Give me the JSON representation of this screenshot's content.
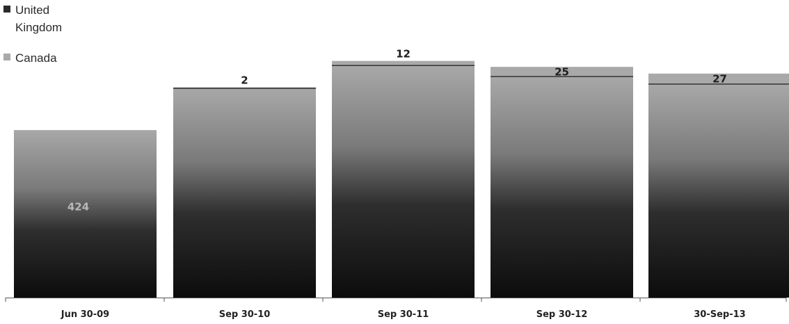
{
  "colors": {
    "canada": "#a9a9a9",
    "united_kingdom": "#2a2a2a",
    "base": "#1a1a1a",
    "axis": "#555555",
    "label_dark": "#1e1e1e",
    "label_light": "#b8b8b8"
  },
  "legend": [
    {
      "name": "United Kingdom",
      "lines": [
        "United",
        "Kingdom"
      ],
      "color_key": "united_kingdom"
    },
    {
      "name": "Canada",
      "lines": [
        "Canada"
      ],
      "color_key": "canada"
    }
  ],
  "chart_data": {
    "type": "bar",
    "stacked": true,
    "categories": [
      "Jun 30-09",
      "Sep 30-10",
      "Sep 30-11",
      "Sep 30-12",
      "30-Sep-13"
    ],
    "series": [
      {
        "name": "",
        "values": [
          424,
          529,
          587,
          559,
          540
        ],
        "label_visible": [
          true,
          false,
          false,
          false,
          false
        ]
      },
      {
        "name": "United Kingdom",
        "values": [
          0,
          0,
          0,
          0,
          0
        ]
      },
      {
        "name": "Canada",
        "values": [
          0,
          2,
          12,
          25,
          27
        ]
      }
    ],
    "segment_labels": {
      "base": [
        "424",
        "",
        "",
        "",
        ""
      ],
      "top": [
        "",
        "2",
        "12",
        "25",
        "27"
      ]
    },
    "title": "",
    "xlabel": "",
    "ylabel": "",
    "ylim": [
      0,
      620
    ],
    "grid": false,
    "legend_position": "top-left"
  }
}
